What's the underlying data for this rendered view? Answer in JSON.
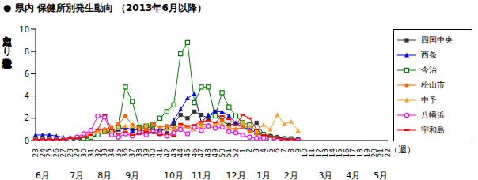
{
  "chart_data": {
    "type": "line",
    "title": "● 県内 保健所別発生動向 （2013年6月以降）",
    "y_label": "定点当たり患者報告数",
    "x_label": "（週）",
    "categories": [
      "23",
      "24",
      "25",
      "26",
      "27",
      "28",
      "29",
      "30",
      "31",
      "32",
      "33",
      "34",
      "35",
      "36",
      "37",
      "38",
      "39",
      "40",
      "41",
      "42",
      "43",
      "44",
      "45",
      "46",
      "47",
      "48",
      "49",
      "50",
      "51",
      "52",
      "1",
      "2",
      "3",
      "4",
      "5",
      "6",
      "7",
      "8",
      "9",
      "10",
      "11",
      "12",
      "13",
      "14",
      "15",
      "16",
      "17",
      "18",
      "19",
      "20",
      "21",
      "22"
    ],
    "month_labels": [
      null,
      "6月",
      null,
      null,
      null,
      null,
      "7月",
      null,
      null,
      null,
      "8月",
      null,
      null,
      null,
      "9月",
      null,
      null,
      null,
      null,
      null,
      "10月",
      null,
      null,
      null,
      "11月",
      null,
      null,
      null,
      null,
      "12月",
      null,
      null,
      null,
      "1月",
      null,
      null,
      null,
      "2月",
      null,
      null,
      null,
      null,
      "3月",
      null,
      null,
      null,
      "4月",
      null,
      null,
      null,
      "5月",
      null
    ],
    "ylim": [
      0,
      10
    ],
    "yticks": [
      0,
      2,
      4,
      6,
      8,
      10
    ],
    "grid": false,
    "legend": "right",
    "series": [
      {
        "name": "四国中央",
        "color": "#333333",
        "marker": "square",
        "values": [
          0.0,
          0.0,
          0.0,
          0.0,
          0.0,
          0.0,
          0.1,
          0.1,
          0.3,
          0.5,
          0.8,
          0.6,
          1.0,
          1.1,
          1.0,
          0.9,
          0.9,
          1.0,
          0.8,
          1.2,
          1.5,
          2.3,
          2.0,
          2.6,
          2.3,
          2.0,
          2.6,
          1.8,
          1.4,
          1.5,
          1.6,
          0.9,
          1.6,
          0.6,
          0.4,
          0.3,
          0.2,
          0.2,
          0.1,
          null,
          null,
          null,
          null,
          null,
          null,
          null,
          null,
          null,
          null,
          null,
          null,
          null
        ]
      },
      {
        "name": "西条",
        "color": "#0000ff",
        "marker": "triangle",
        "values": [
          0.5,
          0.5,
          0.5,
          0.4,
          0.3,
          0.3,
          0.2,
          0.2,
          0.3,
          0.5,
          0.8,
          0.7,
          1.0,
          1.2,
          0.9,
          1.1,
          1.3,
          1.0,
          1.0,
          0.9,
          1.8,
          2.8,
          3.8,
          4.2,
          1.6,
          2.3,
          2.6,
          2.6,
          2.2,
          1.6,
          1.2,
          1.0,
          0.7,
          0.5,
          0.4,
          0.3,
          0.2,
          0.1,
          0.1,
          null,
          null,
          null,
          null,
          null,
          null,
          null,
          null,
          null,
          null,
          null,
          null,
          null
        ]
      },
      {
        "name": "今治",
        "color": "#008000",
        "marker": "open-square",
        "values": [
          0.1,
          0.1,
          0.1,
          0.0,
          0.0,
          0.1,
          0.1,
          0.2,
          0.3,
          0.5,
          0.8,
          0.8,
          1.2,
          4.8,
          3.5,
          1.2,
          1.3,
          1.4,
          2.0,
          2.6,
          3.2,
          7.8,
          8.8,
          3.4,
          4.8,
          4.8,
          2.2,
          4.3,
          3.0,
          2.2,
          1.6,
          1.4,
          0.8,
          0.5,
          0.3,
          0.2,
          0.1,
          0.1,
          0.0,
          null,
          null,
          null,
          null,
          null,
          null,
          null,
          null,
          null,
          null,
          null,
          null,
          null
        ]
      },
      {
        "name": "松山市",
        "color": "#ff6600",
        "marker": "circle",
        "values": [
          0.1,
          0.1,
          0.1,
          0.1,
          0.1,
          0.2,
          0.3,
          0.4,
          0.6,
          0.9,
          1.0,
          1.2,
          1.5,
          2.2,
          1.4,
          1.2,
          1.0,
          1.5,
          1.2,
          1.3,
          1.1,
          1.4,
          1.2,
          1.1,
          1.5,
          1.4,
          1.3,
          1.8,
          1.2,
          1.0,
          1.2,
          0.8,
          0.6,
          0.4,
          0.3,
          0.2,
          0.1,
          0.1,
          0.0,
          null,
          null,
          null,
          null,
          null,
          null,
          null,
          null,
          null,
          null,
          null,
          null,
          null
        ]
      },
      {
        "name": "中予",
        "color": "#ffa020",
        "marker": "triangle",
        "values": [
          0.0,
          0.0,
          0.0,
          0.0,
          0.1,
          0.2,
          0.3,
          0.7,
          0.6,
          0.8,
          0.8,
          0.9,
          1.1,
          1.3,
          1.3,
          1.0,
          1.4,
          1.0,
          0.8,
          1.0,
          0.9,
          1.1,
          1.2,
          1.0,
          1.3,
          1.2,
          1.4,
          1.5,
          1.2,
          0.9,
          1.6,
          1.3,
          0.9,
          1.4,
          1.0,
          2.3,
          1.5,
          1.7,
          0.9,
          null,
          null,
          null,
          null,
          null,
          null,
          null,
          null,
          null,
          null,
          null,
          null,
          null
        ]
      },
      {
        "name": "八幡浜",
        "color": "#ff00ff",
        "marker": "open-circle",
        "values": [
          0.0,
          0.0,
          0.0,
          0.0,
          0.0,
          0.1,
          0.3,
          0.6,
          0.9,
          2.2,
          2.1,
          0.5,
          0.3,
          0.6,
          0.4,
          0.7,
          0.5,
          0.8,
          0.6,
          0.4,
          0.7,
          1.0,
          0.6,
          1.2,
          0.9,
          1.3,
          1.1,
          1.2,
          0.8,
          0.7,
          0.5,
          0.3,
          0.2,
          0.2,
          0.1,
          0.1,
          0.0,
          0.0,
          0.0,
          null,
          null,
          null,
          null,
          null,
          null,
          null,
          null,
          null,
          null,
          null,
          null,
          null
        ]
      },
      {
        "name": "宇和島",
        "color": "#ff0000",
        "marker": "dash",
        "values": [
          0.1,
          0.1,
          0.1,
          0.1,
          0.1,
          0.2,
          0.2,
          0.3,
          0.5,
          1.0,
          2.3,
          1.0,
          0.6,
          0.8,
          0.5,
          0.6,
          0.8,
          0.7,
          0.5,
          0.6,
          0.4,
          1.5,
          1.3,
          1.4,
          1.7,
          1.8,
          1.6,
          2.2,
          1.9,
          1.4,
          2.3,
          2.0,
          1.0,
          0.5,
          0.4,
          0.2,
          0.1,
          0.1,
          0.0,
          null,
          null,
          null,
          null,
          null,
          null,
          null,
          null,
          null,
          null,
          null,
          null,
          null
        ]
      }
    ]
  }
}
